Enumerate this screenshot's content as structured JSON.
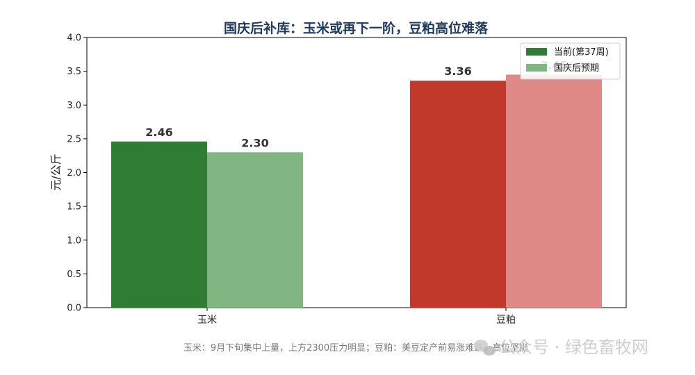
{
  "chart_data": {
    "type": "bar",
    "title": "国庆后补库：玉米或再下一阶，豆粕高位难落",
    "ylabel": "元/公斤",
    "xlabel": "",
    "ylim": [
      0,
      4.0
    ],
    "yticks": [
      "0.0",
      "0.5",
      "1.0",
      "1.5",
      "2.0",
      "2.5",
      "3.0",
      "3.5",
      "4.0"
    ],
    "categories": [
      "玉米",
      "豆粕"
    ],
    "series": [
      {
        "name": "当前(第37周)",
        "values": [
          2.46,
          3.36
        ],
        "labels": [
          "2.46",
          "3.36"
        ],
        "colors": [
          "#2e7d32",
          "#c0392b"
        ]
      },
      {
        "name": "国庆后预期",
        "values": [
          2.3,
          3.45
        ],
        "labels": [
          "2.30",
          "3.45"
        ],
        "colors": [
          "#81b582",
          "#e08a88"
        ]
      }
    ],
    "legend": "top-right",
    "grid": false,
    "note": "玉米：9月下旬集中上量，上方2300压力明显；豆粕：美豆定产前易涨难跌，高位坚挺"
  },
  "watermark": {
    "icon": "wechat-icon",
    "text": "公众号 · 绿色畜牧网"
  }
}
